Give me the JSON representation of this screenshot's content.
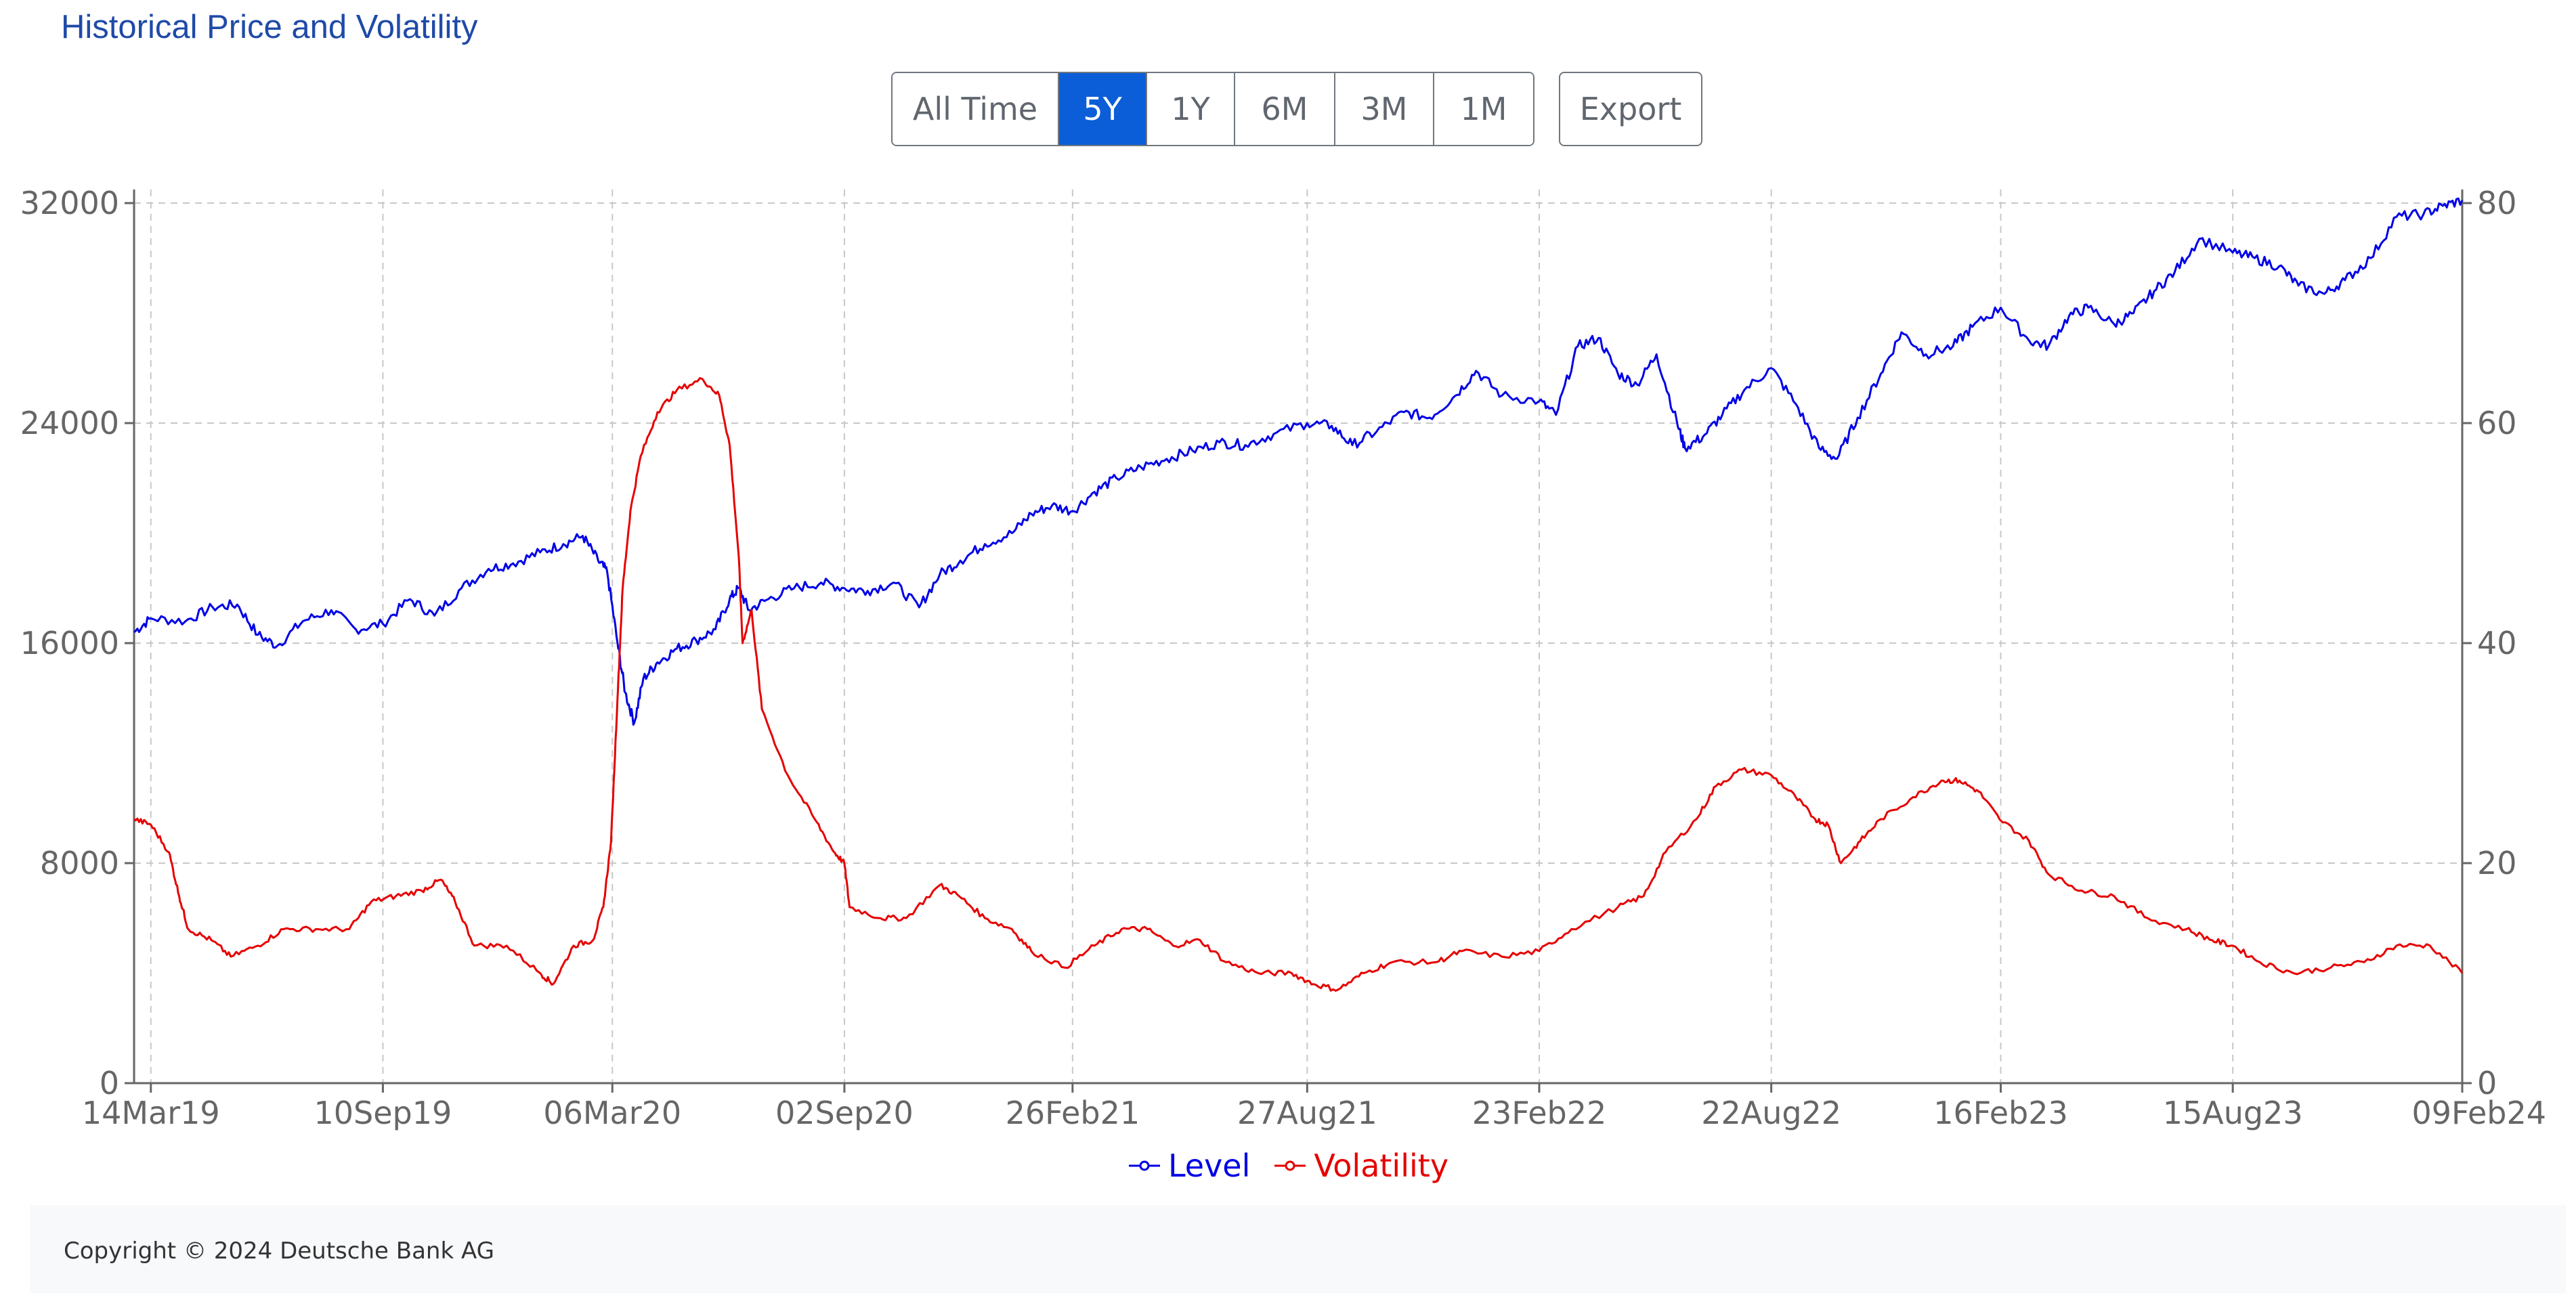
{
  "title": "Historical Price and Volatility",
  "range_buttons": [
    {
      "label": "All Time",
      "active": false
    },
    {
      "label": "5Y",
      "active": true
    },
    {
      "label": "1Y",
      "active": false
    },
    {
      "label": "6M",
      "active": false
    },
    {
      "label": "3M",
      "active": false
    },
    {
      "label": "1M",
      "active": false
    }
  ],
  "export_label": "Export",
  "footer": {
    "copyright": "Copyright © 2024 Deutsche Bank AG"
  },
  "colors": {
    "level": "#0000e6",
    "volatility": "#e60000",
    "active_button": "#0b5ed7",
    "title": "#1f4aa8"
  },
  "chart_data": {
    "type": "line",
    "title": "Historical Price and Volatility",
    "x_range": [
      "2019-03-01",
      "2024-02-09"
    ],
    "x_ticks": [
      {
        "label": "14Mar19",
        "date": "2019-03-14"
      },
      {
        "label": "10Sep19",
        "date": "2019-09-10"
      },
      {
        "label": "06Mar20",
        "date": "2020-03-06"
      },
      {
        "label": "02Sep20",
        "date": "2020-09-02"
      },
      {
        "label": "26Feb21",
        "date": "2021-02-26"
      },
      {
        "label": "27Aug21",
        "date": "2021-08-27"
      },
      {
        "label": "23Feb22",
        "date": "2022-02-23"
      },
      {
        "label": "22Aug22",
        "date": "2022-08-22"
      },
      {
        "label": "16Feb23",
        "date": "2023-02-16"
      },
      {
        "label": "15Aug23",
        "date": "2023-08-15"
      },
      {
        "label": "09Feb24",
        "date": "2024-02-09"
      }
    ],
    "y_left": {
      "range": [
        0,
        32000
      ],
      "ticks": [
        "0",
        "8000",
        "16000",
        "24000",
        "32000"
      ]
    },
    "y_right": {
      "range": [
        0,
        80
      ],
      "ticks": [
        "0",
        "20",
        "40",
        "60",
        "80"
      ]
    },
    "grid": true,
    "legend": "bottom",
    "series": [
      {
        "name": "Level",
        "axis": "left",
        "points": [
          [
            "2019-03-01",
            16400
          ],
          [
            "2019-03-14",
            16900
          ],
          [
            "2019-04-10",
            16800
          ],
          [
            "2019-05-01",
            17300
          ],
          [
            "2019-05-20",
            17400
          ],
          [
            "2019-06-05",
            16300
          ],
          [
            "2019-06-20",
            15900
          ],
          [
            "2019-07-10",
            16800
          ],
          [
            "2019-08-01",
            17200
          ],
          [
            "2019-08-20",
            16500
          ],
          [
            "2019-09-10",
            16700
          ],
          [
            "2019-10-01",
            17600
          ],
          [
            "2019-10-20",
            17000
          ],
          [
            "2019-11-10",
            18000
          ],
          [
            "2019-12-01",
            18700
          ],
          [
            "2019-12-20",
            18900
          ],
          [
            "2020-01-10",
            19300
          ],
          [
            "2020-01-28",
            19600
          ],
          [
            "2020-02-12",
            19900
          ],
          [
            "2020-02-24",
            19000
          ],
          [
            "2020-03-02",
            18600
          ],
          [
            "2020-03-10",
            16000
          ],
          [
            "2020-03-16",
            14200
          ],
          [
            "2020-03-23",
            13100
          ],
          [
            "2020-03-30",
            14700
          ],
          [
            "2020-04-10",
            15300
          ],
          [
            "2020-04-25",
            15800
          ],
          [
            "2020-05-10",
            16100
          ],
          [
            "2020-05-25",
            16500
          ],
          [
            "2020-06-05",
            17600
          ],
          [
            "2020-06-12",
            18000
          ],
          [
            "2020-06-20",
            17200
          ],
          [
            "2020-07-05",
            17600
          ],
          [
            "2020-07-25",
            18000
          ],
          [
            "2020-08-15",
            18200
          ],
          [
            "2020-09-02",
            18000
          ],
          [
            "2020-09-20",
            17900
          ],
          [
            "2020-10-10",
            18200
          ],
          [
            "2020-10-30",
            17300
          ],
          [
            "2020-11-15",
            18500
          ],
          [
            "2020-12-01",
            19000
          ],
          [
            "2020-12-20",
            19600
          ],
          [
            "2021-01-10",
            20000
          ],
          [
            "2021-01-25",
            20700
          ],
          [
            "2021-02-10",
            21000
          ],
          [
            "2021-02-26",
            20800
          ],
          [
            "2021-03-15",
            21500
          ],
          [
            "2021-04-01",
            22000
          ],
          [
            "2021-04-20",
            22400
          ],
          [
            "2021-05-10",
            22700
          ],
          [
            "2021-05-30",
            23000
          ],
          [
            "2021-06-20",
            23300
          ],
          [
            "2021-07-10",
            23200
          ],
          [
            "2021-08-01",
            23600
          ],
          [
            "2021-08-27",
            24000
          ],
          [
            "2021-09-15",
            23900
          ],
          [
            "2021-10-01",
            23200
          ],
          [
            "2021-10-20",
            23700
          ],
          [
            "2021-11-10",
            24400
          ],
          [
            "2021-11-30",
            24200
          ],
          [
            "2021-12-20",
            25000
          ],
          [
            "2022-01-05",
            25900
          ],
          [
            "2022-01-25",
            25000
          ],
          [
            "2022-02-23",
            24800
          ],
          [
            "2022-03-08",
            24300
          ],
          [
            "2022-03-25",
            26800
          ],
          [
            "2022-04-10",
            27100
          ],
          [
            "2022-04-25",
            25800
          ],
          [
            "2022-05-10",
            25400
          ],
          [
            "2022-05-25",
            26500
          ],
          [
            "2022-06-10",
            24000
          ],
          [
            "2022-06-16",
            23100
          ],
          [
            "2022-06-30",
            23500
          ],
          [
            "2022-07-15",
            24300
          ],
          [
            "2022-08-01",
            25200
          ],
          [
            "2022-08-22",
            26000
          ],
          [
            "2022-09-10",
            24700
          ],
          [
            "2022-09-28",
            23100
          ],
          [
            "2022-10-12",
            22700
          ],
          [
            "2022-10-28",
            24200
          ],
          [
            "2022-11-15",
            25800
          ],
          [
            "2022-12-01",
            27300
          ],
          [
            "2022-12-20",
            26500
          ],
          [
            "2023-01-10",
            26800
          ],
          [
            "2023-01-25",
            27500
          ],
          [
            "2023-02-16",
            28200
          ],
          [
            "2023-03-10",
            27000
          ],
          [
            "2023-03-25",
            26800
          ],
          [
            "2023-04-10",
            27900
          ],
          [
            "2023-04-25",
            28200
          ],
          [
            "2023-05-15",
            27600
          ],
          [
            "2023-05-30",
            28000
          ],
          [
            "2023-06-15",
            28800
          ],
          [
            "2023-07-01",
            29500
          ],
          [
            "2023-07-20",
            30700
          ],
          [
            "2023-08-15",
            30200
          ],
          [
            "2023-09-01",
            30000
          ],
          [
            "2023-09-20",
            29700
          ],
          [
            "2023-10-05",
            29000
          ],
          [
            "2023-10-25",
            28700
          ],
          [
            "2023-11-10",
            29200
          ],
          [
            "2023-11-30",
            30000
          ],
          [
            "2023-12-20",
            31500
          ],
          [
            "2024-01-10",
            31600
          ],
          [
            "2024-01-25",
            31900
          ],
          [
            "2024-02-09",
            32100
          ]
        ]
      },
      {
        "name": "Volatility",
        "axis": "right",
        "points": [
          [
            "2019-03-01",
            24
          ],
          [
            "2019-03-14",
            23.5
          ],
          [
            "2019-03-28",
            21
          ],
          [
            "2019-04-05",
            17
          ],
          [
            "2019-04-12",
            14
          ],
          [
            "2019-04-30",
            13
          ],
          [
            "2019-05-15",
            11.5
          ],
          [
            "2019-06-05",
            12.5
          ],
          [
            "2019-06-25",
            14
          ],
          [
            "2019-07-20",
            14
          ],
          [
            "2019-08-15",
            14
          ],
          [
            "2019-09-01",
            16.5
          ],
          [
            "2019-09-20",
            17
          ],
          [
            "2019-10-10",
            17.5
          ],
          [
            "2019-10-25",
            18.5
          ],
          [
            "2019-11-05",
            16.5
          ],
          [
            "2019-11-20",
            12.5
          ],
          [
            "2019-12-15",
            12.5
          ],
          [
            "2020-01-10",
            10
          ],
          [
            "2020-01-20",
            9
          ],
          [
            "2020-02-05",
            12.5
          ],
          [
            "2020-02-20",
            13
          ],
          [
            "2020-02-28",
            16
          ],
          [
            "2020-03-05",
            22
          ],
          [
            "2020-03-10",
            35
          ],
          [
            "2020-03-14",
            45
          ],
          [
            "2020-03-20",
            52
          ],
          [
            "2020-03-28",
            57
          ],
          [
            "2020-04-10",
            61
          ],
          [
            "2020-04-25",
            63
          ],
          [
            "2020-05-15",
            64
          ],
          [
            "2020-05-28",
            62.5
          ],
          [
            "2020-06-05",
            58
          ],
          [
            "2020-06-12",
            48
          ],
          [
            "2020-06-15",
            40
          ],
          [
            "2020-06-22",
            43
          ],
          [
            "2020-06-30",
            34
          ],
          [
            "2020-07-20",
            28
          ],
          [
            "2020-08-10",
            24
          ],
          [
            "2020-08-25",
            21
          ],
          [
            "2020-09-02",
            20
          ],
          [
            "2020-09-06",
            16
          ],
          [
            "2020-09-30",
            15
          ],
          [
            "2020-10-20",
            15
          ],
          [
            "2020-11-15",
            18
          ],
          [
            "2020-11-30",
            17
          ],
          [
            "2020-12-20",
            15
          ],
          [
            "2021-01-10",
            14
          ],
          [
            "2021-01-25",
            12
          ],
          [
            "2021-02-20",
            10.5
          ],
          [
            "2021-03-15",
            12.5
          ],
          [
            "2021-04-05",
            14
          ],
          [
            "2021-04-25",
            14
          ],
          [
            "2021-05-15",
            12.5
          ],
          [
            "2021-06-05",
            13
          ],
          [
            "2021-06-25",
            11
          ],
          [
            "2021-07-20",
            10
          ],
          [
            "2021-08-15",
            10
          ],
          [
            "2021-09-01",
            9
          ],
          [
            "2021-09-20",
            8.5
          ],
          [
            "2021-10-10",
            10
          ],
          [
            "2021-11-01",
            11
          ],
          [
            "2021-12-05",
            11
          ],
          [
            "2021-12-25",
            12
          ],
          [
            "2022-01-25",
            11.5
          ],
          [
            "2022-02-23",
            12
          ],
          [
            "2022-03-20",
            14
          ],
          [
            "2022-04-25",
            16
          ],
          [
            "2022-05-15",
            17
          ],
          [
            "2022-06-01",
            21
          ],
          [
            "2022-06-25",
            24
          ],
          [
            "2022-07-10",
            27
          ],
          [
            "2022-07-30",
            28.5
          ],
          [
            "2022-08-22",
            28
          ],
          [
            "2022-09-10",
            26
          ],
          [
            "2022-09-25",
            24
          ],
          [
            "2022-10-05",
            23.5
          ],
          [
            "2022-10-15",
            20
          ],
          [
            "2022-10-30",
            22
          ],
          [
            "2022-11-15",
            24
          ],
          [
            "2022-12-10",
            26
          ],
          [
            "2023-01-01",
            27.5
          ],
          [
            "2023-01-15",
            27.5
          ],
          [
            "2023-01-30",
            26.5
          ],
          [
            "2023-02-15",
            24
          ],
          [
            "2023-03-10",
            22
          ],
          [
            "2023-03-25",
            19
          ],
          [
            "2023-04-20",
            17.5
          ],
          [
            "2023-05-15",
            17
          ],
          [
            "2023-06-10",
            15
          ],
          [
            "2023-07-10",
            14
          ],
          [
            "2023-07-30",
            13
          ],
          [
            "2023-08-15",
            12.5
          ],
          [
            "2023-09-05",
            11
          ],
          [
            "2023-10-01",
            10
          ],
          [
            "2023-10-30",
            10.5
          ],
          [
            "2023-11-25",
            11
          ],
          [
            "2023-12-20",
            12.5
          ],
          [
            "2024-01-15",
            12.5
          ],
          [
            "2024-02-09",
            10
          ]
        ]
      }
    ]
  }
}
